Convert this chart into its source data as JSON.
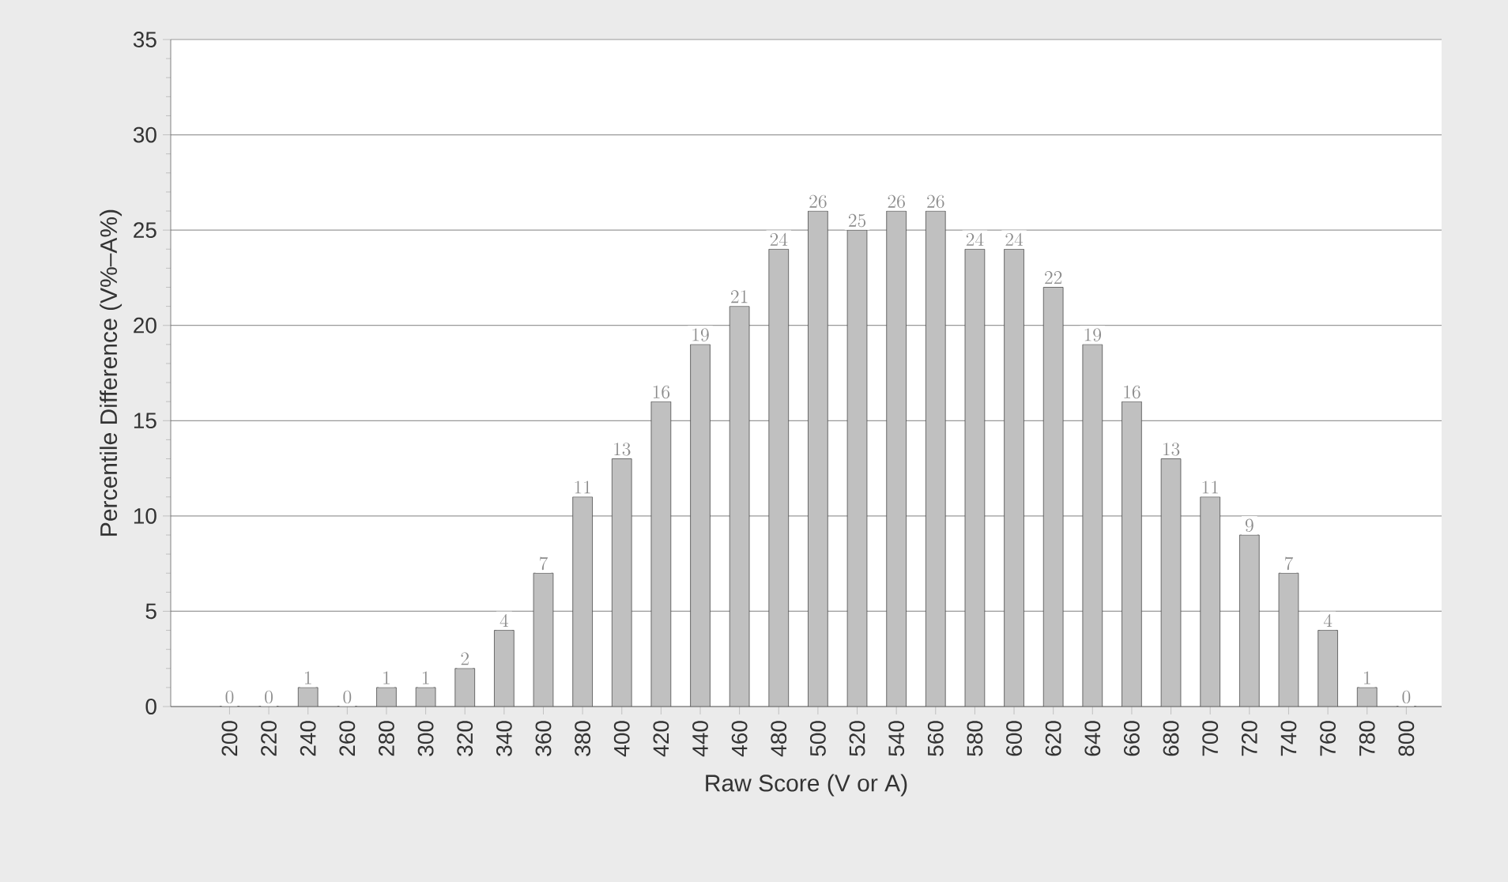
{
  "chart_data": {
    "type": "bar",
    "xlabel": "Raw Score (V or A)",
    "ylabel": "Percentile Difference (V%–A%)",
    "categories": [
      "200",
      "220",
      "240",
      "260",
      "280",
      "300",
      "320",
      "340",
      "360",
      "380",
      "400",
      "420",
      "440",
      "460",
      "480",
      "500",
      "520",
      "540",
      "560",
      "580",
      "600",
      "620",
      "640",
      "660",
      "680",
      "700",
      "720",
      "740",
      "760",
      "780",
      "800"
    ],
    "values": [
      0,
      0,
      1,
      0,
      1,
      1,
      2,
      4,
      7,
      11,
      13,
      16,
      19,
      21,
      24,
      26,
      25,
      26,
      26,
      24,
      24,
      22,
      19,
      16,
      13,
      11,
      9,
      7,
      4,
      1,
      0
    ],
    "color": "#c0c0c0",
    "ylim": [
      0,
      35
    ],
    "yticks": [
      0,
      5,
      10,
      15,
      20,
      25,
      30,
      35
    ],
    "grid": "y",
    "data_labels": true
  }
}
